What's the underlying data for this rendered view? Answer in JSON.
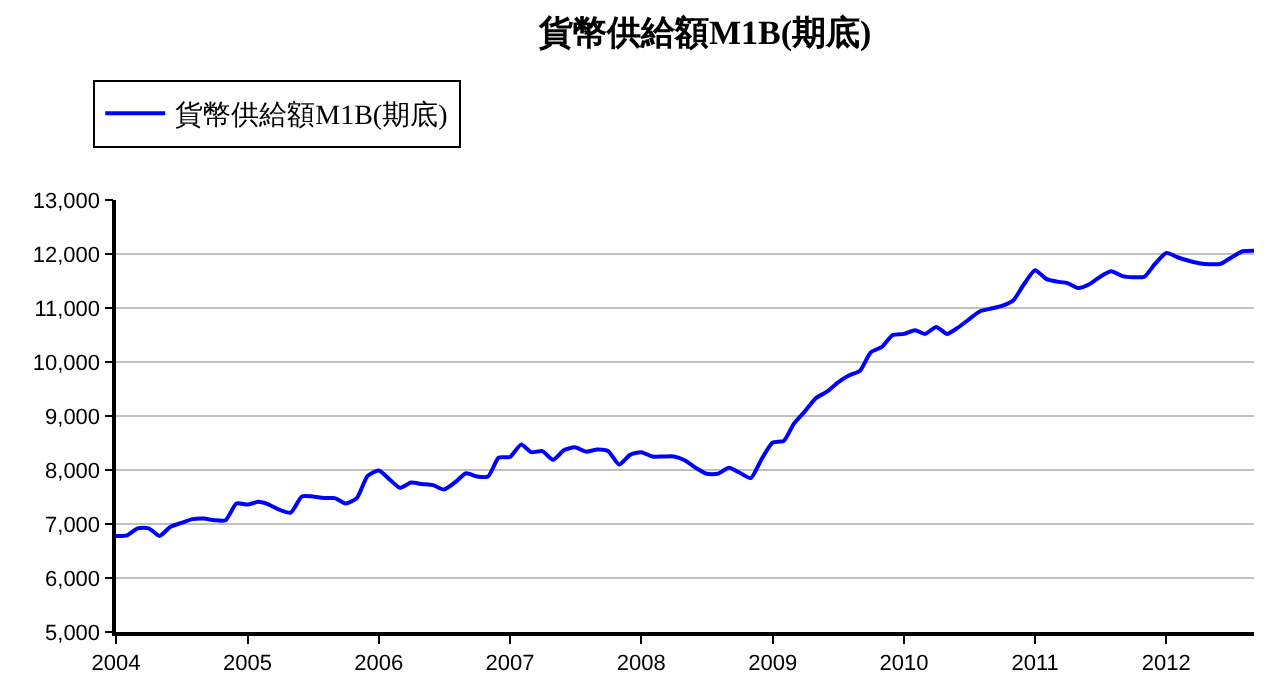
{
  "chart_data": {
    "type": "line",
    "title": "貨幣供給額M1B(期底)",
    "x": [
      "2004-01",
      "2004-02",
      "2004-03",
      "2004-04",
      "2004-05",
      "2004-06",
      "2004-07",
      "2004-08",
      "2004-09",
      "2004-10",
      "2004-11",
      "2004-12",
      "2005-01",
      "2005-02",
      "2005-03",
      "2005-04",
      "2005-05",
      "2005-06",
      "2005-07",
      "2005-08",
      "2005-09",
      "2005-10",
      "2005-11",
      "2005-12",
      "2006-01",
      "2006-02",
      "2006-03",
      "2006-04",
      "2006-05",
      "2006-06",
      "2006-07",
      "2006-08",
      "2006-09",
      "2006-10",
      "2006-11",
      "2006-12",
      "2007-01",
      "2007-02",
      "2007-03",
      "2007-04",
      "2007-05",
      "2007-06",
      "2007-07",
      "2007-08",
      "2007-09",
      "2007-10",
      "2007-11",
      "2007-12",
      "2008-01",
      "2008-02",
      "2008-03",
      "2008-04",
      "2008-05",
      "2008-06",
      "2008-07",
      "2008-08",
      "2008-09",
      "2008-10",
      "2008-11",
      "2008-12",
      "2009-01",
      "2009-02",
      "2009-03",
      "2009-04",
      "2009-05",
      "2009-06",
      "2009-07",
      "2009-08",
      "2009-09",
      "2009-10",
      "2009-11",
      "2009-12",
      "2010-01",
      "2010-02",
      "2010-03",
      "2010-04",
      "2010-05",
      "2010-06",
      "2010-07",
      "2010-08",
      "2010-09",
      "2010-10",
      "2010-11",
      "2010-12",
      "2011-01",
      "2011-02",
      "2011-03",
      "2011-04",
      "2011-05",
      "2011-06",
      "2011-07",
      "2011-08",
      "2011-09",
      "2011-10",
      "2011-11",
      "2011-12",
      "2012-01",
      "2012-02",
      "2012-03",
      "2012-04",
      "2012-05",
      "2012-06",
      "2012-07",
      "2012-08",
      "2012-09"
    ],
    "series": [
      {
        "name": "貨幣供給額M1B(期底)",
        "color": "#0000ff",
        "values": [
          6780,
          6790,
          6920,
          6920,
          6780,
          6950,
          7020,
          7090,
          7100,
          7070,
          7070,
          7380,
          7360,
          7410,
          7360,
          7260,
          7210,
          7510,
          7510,
          7480,
          7480,
          7380,
          7480,
          7890,
          7990,
          7820,
          7670,
          7770,
          7740,
          7720,
          7640,
          7770,
          7940,
          7880,
          7880,
          8230,
          8240,
          8470,
          8330,
          8350,
          8190,
          8370,
          8420,
          8340,
          8380,
          8350,
          8100,
          8280,
          8330,
          8250,
          8250,
          8250,
          8180,
          8040,
          7930,
          7930,
          8040,
          7950,
          7850,
          8200,
          8510,
          8540,
          8860,
          9090,
          9330,
          9450,
          9620,
          9750,
          9840,
          10180,
          10280,
          10500,
          10520,
          10590,
          10520,
          10650,
          10520,
          10640,
          10790,
          10940,
          10990,
          11040,
          11140,
          11440,
          11700,
          11540,
          11490,
          11460,
          11370,
          11440,
          11580,
          11680,
          11590,
          11570,
          11580,
          11820,
          12020,
          11940,
          11880,
          11830,
          11810,
          11820,
          11940,
          12050,
          12060
        ]
      }
    ],
    "xlim": [
      "2004-01",
      "2012-09"
    ],
    "xticks": [
      "2004",
      "2005",
      "2006",
      "2007",
      "2008",
      "2009",
      "2010",
      "2011",
      "2012"
    ],
    "ylim": [
      5000,
      13000
    ],
    "yticks": [
      {
        "value": 5000,
        "label": "5,000"
      },
      {
        "value": 6000,
        "label": "6,000"
      },
      {
        "value": 7000,
        "label": "7,000"
      },
      {
        "value": 8000,
        "label": "8,000"
      },
      {
        "value": 9000,
        "label": "9,000"
      },
      {
        "value": 10000,
        "label": "10,000"
      },
      {
        "value": 11000,
        "label": "11,000"
      },
      {
        "value": 12000,
        "label": "12,000"
      },
      {
        "value": 13000,
        "label": "13,000"
      }
    ],
    "grid": "y",
    "legend": "top left",
    "marker": "none",
    "line_style": "solid"
  }
}
